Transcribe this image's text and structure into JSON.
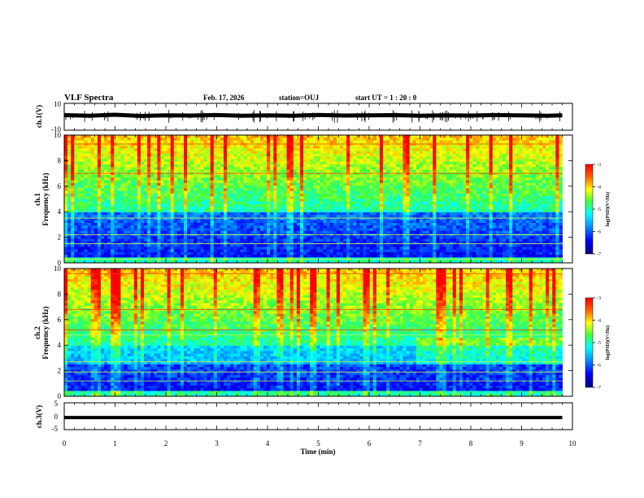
{
  "header": {
    "title": "VLF Spectra",
    "date": "Feb. 17, 2026",
    "station": "station=OUJ",
    "start": "start  UT =  1 : 20 : 0"
  },
  "chart_data": [
    {
      "type": "line",
      "panel": "ch1-waveform",
      "ylabel": "ch.1(V)",
      "ylim": [
        -10,
        10
      ],
      "yticks": [
        "10",
        "-10"
      ],
      "x": [
        0,
        0.5,
        1,
        1.5,
        2,
        2.5,
        3,
        3.5,
        4,
        4.5,
        5,
        5.5,
        6,
        6.5,
        7,
        7.5,
        8,
        8.5,
        9,
        9.5,
        9.8
      ],
      "y": [
        1.2,
        0.8,
        1.5,
        0.6,
        1.0,
        0.9,
        1.3,
        0.7,
        1.1,
        0.8,
        1.4,
        0.9,
        1.0,
        1.2,
        0.8,
        1.1,
        0.9,
        1.3,
        1.0,
        0.8,
        1.1
      ]
    },
    {
      "type": "heatmap",
      "panel": "ch1-spectrogram",
      "ylabel": "ch.1\nFrequency (kHz)",
      "ylabel_lines": [
        "ch.1",
        "Frequency (kHz)"
      ],
      "ylim": [
        0,
        10
      ],
      "yticks": [
        "0",
        "2",
        "4",
        "6",
        "8",
        "10"
      ],
      "xlim": [
        0,
        9.8
      ],
      "colorbar": {
        "label": "log(PSD)(V²/Hz)",
        "range": [
          -7,
          -3
        ],
        "ticks": [
          "-3",
          "-4",
          "-5",
          "-6",
          "-7"
        ]
      }
    },
    {
      "type": "heatmap",
      "panel": "ch2-spectrogram",
      "ylabel_lines": [
        "ch.2",
        "Frequency (kHz)"
      ],
      "ylim": [
        0,
        10
      ],
      "yticks": [
        "0",
        "2",
        "4",
        "6",
        "8",
        "10"
      ],
      "xlim": [
        0,
        9.8
      ],
      "colorbar": {
        "label": "log(PSD)(V²/Hz)",
        "range": [
          -7,
          -3
        ],
        "ticks": [
          "-3",
          "-4",
          "-5",
          "-6",
          "-7"
        ]
      }
    },
    {
      "type": "line",
      "panel": "ch3-waveform",
      "ylabel": "ch.3(V)",
      "ylim": [
        -5,
        5
      ],
      "yticks": [
        "5",
        "0",
        "-5"
      ],
      "x": [
        0,
        9.8
      ],
      "y": [
        -0.5,
        -0.5
      ]
    }
  ],
  "xaxis": {
    "label": "Time (min)",
    "range": [
      0,
      10
    ],
    "ticks": [
      "0",
      "1",
      "2",
      "3",
      "4",
      "5",
      "6",
      "7",
      "8",
      "9",
      "10"
    ]
  }
}
